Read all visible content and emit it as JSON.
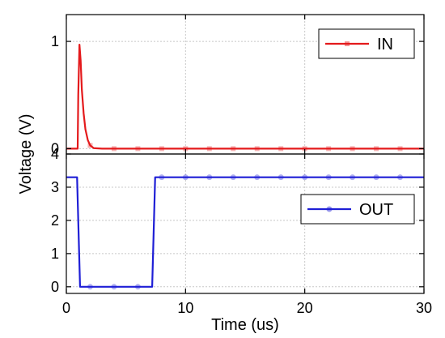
{
  "chart_data": {
    "type": "line",
    "xlabel": "Time (us)",
    "ylabel": "Voltage (V)",
    "xlim": [
      0,
      30
    ],
    "x_ticks": [
      "0",
      "10",
      "20",
      "30"
    ],
    "grid": true,
    "panels": [
      {
        "name": "top",
        "ylim": [
          -0.05,
          1.25
        ],
        "y_ticks": [
          {
            "value": 0,
            "label": "0"
          },
          {
            "value": 1,
            "label": "1"
          }
        ],
        "legend": {
          "label": "IN",
          "position": "top-right"
        },
        "series": [
          {
            "name": "IN",
            "color": "#e41a1c",
            "marker": "square",
            "x": [
              0,
              0.95,
              1.0,
              1.1,
              1.2,
              1.3,
              1.45,
              1.6,
              1.8,
              2.0,
              2.3,
              3,
              30
            ],
            "y": [
              0,
              0,
              0.5,
              0.97,
              0.82,
              0.55,
              0.33,
              0.18,
              0.08,
              0.03,
              0.005,
              0,
              0
            ],
            "markers_x": [
              2,
              4,
              6,
              8,
              10,
              12,
              14,
              16,
              18,
              20,
              22,
              24,
              26,
              28
            ]
          }
        ]
      },
      {
        "name": "bottom",
        "ylim": [
          -0.2,
          4.0
        ],
        "y_ticks": [
          {
            "value": 0,
            "label": "0"
          },
          {
            "value": 1,
            "label": "1"
          },
          {
            "value": 2,
            "label": "2"
          },
          {
            "value": 3,
            "label": "3"
          },
          {
            "value": 4,
            "label": "4"
          }
        ],
        "legend": {
          "label": "OUT",
          "position": "center-right"
        },
        "series": [
          {
            "name": "OUT",
            "color": "#1f1fd6",
            "marker": "circle",
            "x": [
              0,
              0.9,
              1.15,
              7.2,
              7.45,
              30
            ],
            "y": [
              3.3,
              3.3,
              0,
              0,
              3.3,
              3.3
            ],
            "markers_x": [
              2,
              4,
              6,
              8,
              10,
              12,
              14,
              16,
              18,
              20,
              22,
              24,
              26,
              28
            ]
          }
        ]
      }
    ]
  }
}
